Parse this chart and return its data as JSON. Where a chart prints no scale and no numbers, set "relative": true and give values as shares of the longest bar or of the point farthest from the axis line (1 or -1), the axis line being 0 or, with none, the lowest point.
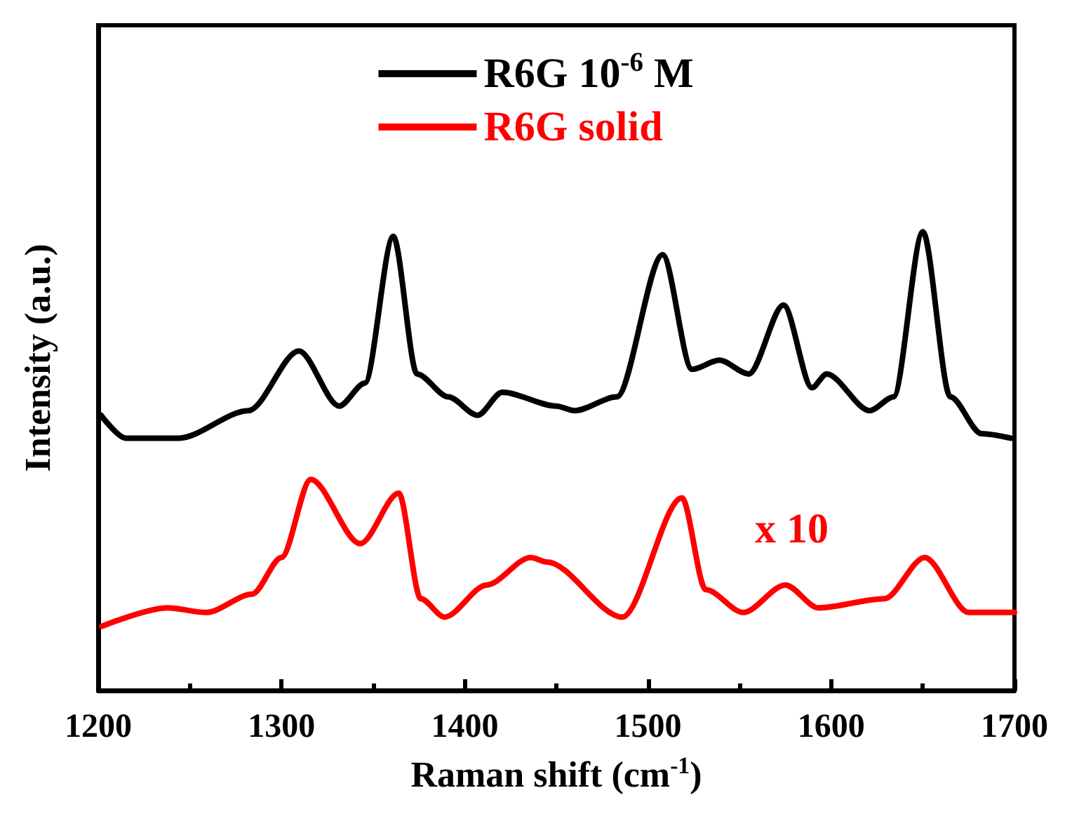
{
  "chart_data": {
    "type": "line",
    "relative": true,
    "xlabel": "Raman shift (cm$^{-1}$)",
    "ylabel": "Intensity (a.u.)",
    "xlim": [
      1200,
      1700
    ],
    "xticks": [
      1200,
      1300,
      1400,
      1500,
      1600,
      1700
    ],
    "tick_labels": "x",
    "grid": false,
    "legend": "top",
    "marker": "none",
    "line_style": "solid",
    "annotations": [
      "x 10"
    ],
    "series": [
      {
        "name": "R6G 10$^{-6}$ M",
        "color": "#000000",
        "x": [
          1201.5,
          1215,
          1244,
          1282,
          1309.5,
          1331.5,
          1345.5,
          1361,
          1374,
          1391,
          1407,
          1420.5,
          1450,
          1460,
          1483,
          1508,
          1524,
          1539,
          1555,
          1574,
          1589.5,
          1597.5,
          1621,
          1634,
          1650,
          1665,
          1682,
          1698
        ],
        "values": [
          0.6,
          0.55,
          0.55,
          0.61,
          0.74,
          0.62,
          0.67,
          0.99,
          0.69,
          0.64,
          0.6,
          0.65,
          0.62,
          0.61,
          0.64,
          0.95,
          0.7,
          0.72,
          0.69,
          0.84,
          0.66,
          0.69,
          0.61,
          0.64,
          1,
          0.64,
          0.56,
          0.55
        ]
      },
      {
        "name": "R6G solid",
        "color": "#ff0000",
        "x": [
          1202,
          1238,
          1259,
          1284,
          1300,
          1316,
          1343,
          1364,
          1376,
          1389,
          1412,
          1436,
          1445,
          1486,
          1518.5,
          1531.5,
          1552,
          1575,
          1593,
          1629,
          1651,
          1675,
          1700
        ],
        "values": [
          0.14,
          0.18,
          0.17,
          0.21,
          0.29,
          0.46,
          0.32,
          0.43,
          0.2,
          0.16,
          0.23,
          0.29,
          0.28,
          0.16,
          0.42,
          0.22,
          0.17,
          0.23,
          0.18,
          0.2,
          0.29,
          0.17,
          0.17
        ]
      }
    ]
  }
}
